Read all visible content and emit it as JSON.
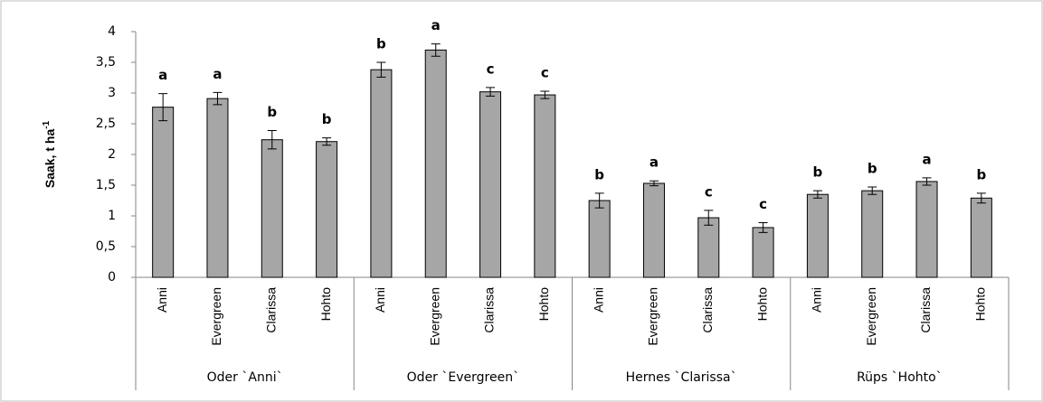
{
  "chart_data": {
    "type": "bar",
    "y_label": "Saak, t ha",
    "y_label_sup": "-1",
    "groups": [
      "Oder `Anni`",
      "Oder `Evergreen`",
      "Hernes `Clarissa`",
      "Rüps `Hohto`"
    ],
    "categories": [
      "Anni",
      "Evergreen",
      "Clarissa",
      "Hohto",
      "Anni",
      "Evergreen",
      "Clarissa",
      "Hohto",
      "Anni",
      "Evergreen",
      "Clarissa",
      "Hohto",
      "Anni",
      "Evergreen",
      "Clarissa",
      "Hohto"
    ],
    "values": [
      2.77,
      2.91,
      2.24,
      2.21,
      3.38,
      3.7,
      3.02,
      2.97,
      1.25,
      1.53,
      0.97,
      0.81,
      1.35,
      1.41,
      1.56,
      1.29
    ],
    "errors": [
      0.22,
      0.1,
      0.15,
      0.06,
      0.12,
      0.1,
      0.07,
      0.06,
      0.12,
      0.04,
      0.12,
      0.08,
      0.06,
      0.06,
      0.06,
      0.08
    ],
    "annotations": [
      "a",
      "a",
      "b",
      "b",
      "b",
      "a",
      "c",
      "c",
      "b",
      "a",
      "c",
      "c",
      "b",
      "b",
      "a",
      "b"
    ],
    "color": "#a6a6a6",
    "ylim": [
      0,
      4
    ],
    "yticks": [
      0,
      {
        "value": 0.5,
        "label": "0,5"
      },
      1,
      {
        "value": 1.5,
        "label": "1,5"
      },
      2,
      {
        "value": 2.5,
        "label": "2,5"
      },
      3,
      {
        "value": 3.5,
        "label": "3,5"
      },
      4
    ]
  }
}
